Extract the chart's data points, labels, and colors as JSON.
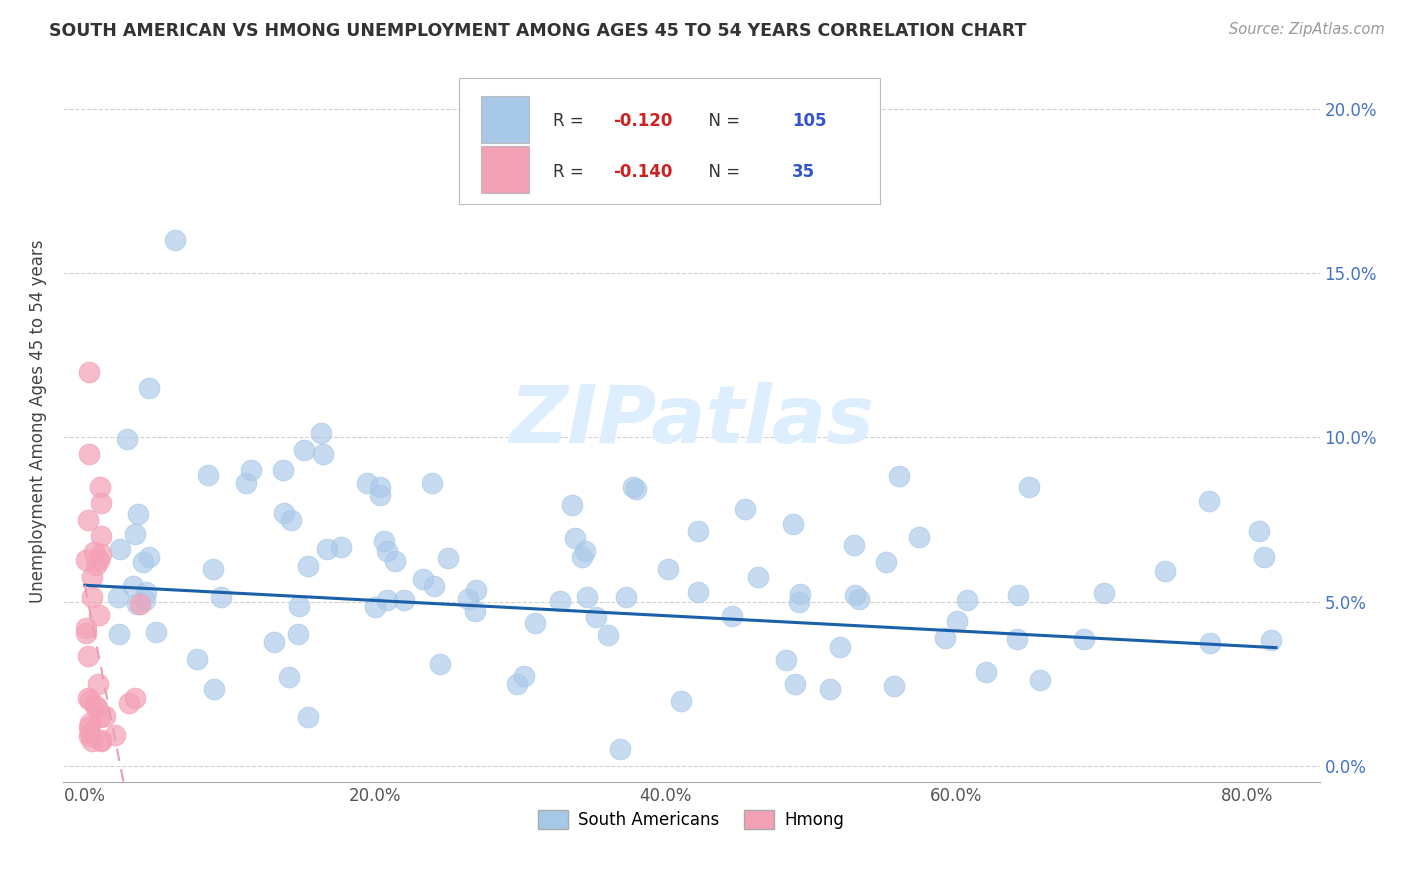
{
  "title": "SOUTH AMERICAN VS HMONG UNEMPLOYMENT AMONG AGES 45 TO 54 YEARS CORRELATION CHART",
  "source": "Source: ZipAtlas.com",
  "ylabel": "Unemployment Among Ages 45 to 54 years",
  "xlim": [
    -0.015,
    0.85
  ],
  "ylim": [
    -0.005,
    0.215
  ],
  "xtick_vals": [
    0.0,
    0.2,
    0.4,
    0.6,
    0.8
  ],
  "xtick_labels": [
    "0.0%",
    "20.0%",
    "40.0%",
    "60.0%",
    "80.0%"
  ],
  "ytick_vals": [
    0.0,
    0.05,
    0.1,
    0.15,
    0.2
  ],
  "ytick_labels": [
    "0.0%",
    "5.0%",
    "10.0%",
    "15.0%",
    "20.0%"
  ],
  "blue_R": -0.12,
  "blue_N": 105,
  "pink_R": -0.14,
  "pink_N": 35,
  "blue_color": "#a8c8e8",
  "pink_color": "#f4a0b5",
  "trend_blue": "#1a5fa8",
  "trend_pink_solid": "#c0405a",
  "trend_pink_dash": "#e8a0b0",
  "watermark_color": "#ddeeff",
  "legend_label_blue": "South Americans",
  "legend_label_pink": "Hmong",
  "stats_R_color": "#cc2222",
  "stats_N_color": "#3355cc",
  "stats_text_color": "#333333"
}
